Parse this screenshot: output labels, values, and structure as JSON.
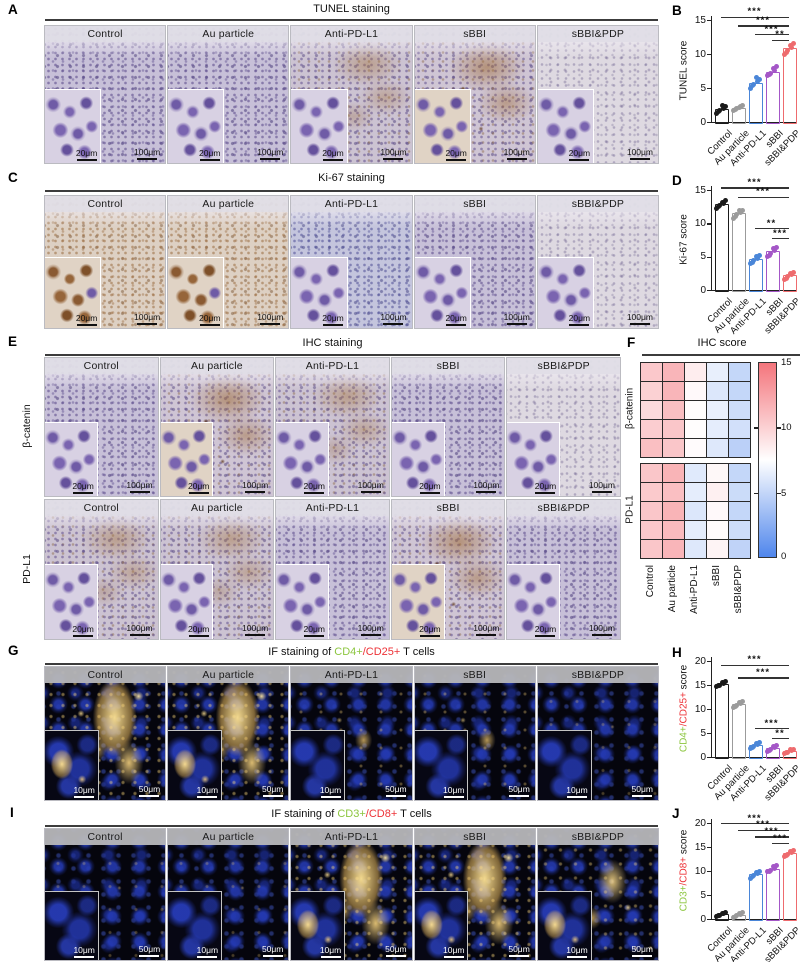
{
  "groups": [
    "Control",
    "Au particle",
    "Anti-PD-L1",
    "sBBI",
    "sBBI&PDP"
  ],
  "colors": {
    "group_black": "#1a1a1a",
    "group_gray": "#9b9b9b",
    "group_blue": "#4a86d8",
    "group_purple": "#a457c7",
    "group_red": "#ee6b6e",
    "green_label": "#8cc63f",
    "red_label": "#ed3237",
    "heatmap_low": "#4f86ec",
    "heatmap_mid": "#ffffff",
    "heatmap_high": "#f4757c"
  },
  "panels": [
    {
      "id": "A",
      "panel_label": "A",
      "kind": "ihc",
      "title_parts": [
        {
          "text": "TUNEL staining"
        }
      ],
      "inset_scale": "20μm",
      "main_scale": "100μm",
      "rows": [
        {
          "cells": [
            {
              "label": "Control",
              "tint": "lav"
            },
            {
              "label": "Au particle",
              "tint": "lav"
            },
            {
              "label": "Anti-PD-L1",
              "tint": "lavtan"
            },
            {
              "label": "sBBI",
              "tint": "lavtan2"
            },
            {
              "label": "sBBI&PDP",
              "tint": "light"
            }
          ]
        }
      ]
    },
    {
      "id": "C",
      "panel_label": "C",
      "kind": "ihc",
      "title_parts": [
        {
          "text": "Ki-67 staining"
        }
      ],
      "inset_scale": "20μm",
      "main_scale": "100μm",
      "rows": [
        {
          "cells": [
            {
              "label": "Control",
              "tint": "tan"
            },
            {
              "label": "Au particle",
              "tint": "tan"
            },
            {
              "label": "Anti-PD-L1",
              "tint": "blue"
            },
            {
              "label": "sBBI",
              "tint": "lav"
            },
            {
              "label": "sBBI&PDP",
              "tint": "light"
            }
          ]
        }
      ]
    },
    {
      "id": "E",
      "panel_label": "E",
      "kind": "ihc",
      "title_parts": [
        {
          "text": "IHC staining"
        }
      ],
      "inset_scale": "20μm",
      "main_scale": "100μm",
      "rows": [
        {
          "row_label": "β-catenin",
          "cells": [
            {
              "label": "Control",
              "tint": "lav"
            },
            {
              "label": "Au particle",
              "tint": "lavtan2"
            },
            {
              "label": "Anti-PD-L1",
              "tint": "lavtan"
            },
            {
              "label": "sBBI",
              "tint": "lav"
            },
            {
              "label": "sBBI&PDP",
              "tint": "light"
            }
          ]
        },
        {
          "row_label": "PD-L1",
          "cells": [
            {
              "label": "Control",
              "tint": "lavtan"
            },
            {
              "label": "Au particle",
              "tint": "lavtan"
            },
            {
              "label": "Anti-PD-L1",
              "tint": "lav"
            },
            {
              "label": "sBBI",
              "tint": "lavtan2"
            },
            {
              "label": "sBBI&PDP",
              "tint": "lav"
            }
          ]
        }
      ]
    },
    {
      "id": "G",
      "panel_label": "G",
      "kind": "if",
      "title_parts": [
        {
          "text": "IF staining of "
        },
        {
          "text": "CD4+",
          "color": "#8cc63f"
        },
        {
          "text": "/CD25+",
          "color": "#ed3237"
        },
        {
          "text": " T cells"
        }
      ],
      "inset_scale": "10μm",
      "main_scale": "50μm",
      "rows": [
        {
          "cells": [
            {
              "label": "Control",
              "tint": "y3"
            },
            {
              "label": "Au particle",
              "tint": "y3"
            },
            {
              "label": "Anti-PD-L1",
              "tint": "y1"
            },
            {
              "label": "sBBI",
              "tint": "y1"
            },
            {
              "label": "sBBI&PDP",
              "tint": "y0"
            }
          ]
        }
      ]
    },
    {
      "id": "I",
      "panel_label": "I",
      "kind": "if",
      "title_parts": [
        {
          "text": "IF staining of "
        },
        {
          "text": "CD3+",
          "color": "#8cc63f"
        },
        {
          "text": "/CD8+",
          "color": "#ed3237"
        },
        {
          "text": " T cells"
        }
      ],
      "inset_scale": "10μm",
      "main_scale": "50μm",
      "rows": [
        {
          "cells": [
            {
              "label": "Control",
              "tint": "y0"
            },
            {
              "label": "Au particle",
              "tint": "y0"
            },
            {
              "label": "Anti-PD-L1",
              "tint": "y3"
            },
            {
              "label": "sBBI",
              "tint": "y3"
            },
            {
              "label": "sBBI&PDP",
              "tint": "y2"
            }
          ]
        }
      ]
    }
  ],
  "chart_data": [
    {
      "id": "B",
      "panel_label": "B",
      "type": "scatter",
      "ylabel_parts": [
        {
          "text": "TUNEL score"
        }
      ],
      "ylim": [
        0,
        15
      ],
      "yticks": [
        0,
        5,
        10,
        15
      ],
      "categories": [
        "Control",
        "Au particle",
        "Anti-PD-L1",
        "sBBI",
        "sBBI&PDP"
      ],
      "series": [
        {
          "name": "Control",
          "color": "#1a1a1a",
          "mean": 1.9,
          "points": [
            1.3,
            1.7,
            2.0,
            2.3,
            1.6,
            2.5
          ]
        },
        {
          "name": "Au particle",
          "color": "#9b9b9b",
          "mean": 2.1,
          "points": [
            1.7,
            2.0,
            2.3,
            2.5,
            1.9,
            2.2
          ]
        },
        {
          "name": "Anti-PD-L1",
          "color": "#4a86d8",
          "mean": 5.8,
          "points": [
            5.0,
            5.5,
            5.9,
            6.3,
            5.3,
            6.5
          ]
        },
        {
          "name": "sBBI",
          "color": "#a457c7",
          "mean": 7.4,
          "points": [
            6.8,
            7.2,
            7.6,
            8.1,
            7.0,
            7.9
          ]
        },
        {
          "name": "sBBI&PDP",
          "color": "#ee6b6e",
          "mean": 10.9,
          "points": [
            9.9,
            10.5,
            11.0,
            11.6,
            10.2,
            11.3
          ]
        }
      ],
      "significance": [
        {
          "a": 0,
          "b": 4,
          "label": "***",
          "y": 15.5
        },
        {
          "a": 1,
          "b": 4,
          "label": "***",
          "y": 14.2
        },
        {
          "a": 2,
          "b": 4,
          "label": "***",
          "y": 12.9
        },
        {
          "a": 3,
          "b": 4,
          "label": "**",
          "y": 12.1
        }
      ]
    },
    {
      "id": "D",
      "panel_label": "D",
      "type": "scatter",
      "ylabel_parts": [
        {
          "text": "Ki-67 score"
        }
      ],
      "ylim": [
        0,
        15
      ],
      "yticks": [
        0,
        5,
        10,
        15
      ],
      "categories": [
        "Control",
        "Au particle",
        "Anti-PD-L1",
        "sBBI",
        "sBBI&PDP"
      ],
      "series": [
        {
          "name": "Control",
          "color": "#1a1a1a",
          "mean": 12.9,
          "points": [
            12.3,
            12.7,
            13.0,
            13.4,
            12.5,
            13.2
          ]
        },
        {
          "name": "Au particle",
          "color": "#9b9b9b",
          "mean": 11.5,
          "points": [
            10.8,
            11.3,
            11.6,
            12.0,
            11.1,
            11.9
          ]
        },
        {
          "name": "Anti-PD-L1",
          "color": "#4a86d8",
          "mean": 4.7,
          "points": [
            4.0,
            4.4,
            4.8,
            5.2,
            4.2,
            5.0
          ]
        },
        {
          "name": "sBBI",
          "color": "#a457c7",
          "mean": 5.8,
          "points": [
            5.0,
            5.5,
            5.9,
            6.4,
            5.2,
            6.2
          ]
        },
        {
          "name": "sBBI&PDP",
          "color": "#ee6b6e",
          "mean": 2.2,
          "points": [
            1.6,
            2.0,
            2.3,
            2.7,
            1.8,
            2.5
          ]
        }
      ],
      "significance": [
        {
          "a": 0,
          "b": 4,
          "label": "***",
          "y": 15.4
        },
        {
          "a": 1,
          "b": 4,
          "label": "***",
          "y": 14.0
        },
        {
          "a": 2,
          "b": 4,
          "label": "**",
          "y": 9.3
        },
        {
          "a": 3,
          "b": 4,
          "label": "***",
          "y": 7.8
        }
      ]
    },
    {
      "id": "H",
      "panel_label": "H",
      "type": "scatter",
      "ylabel_parts": [
        {
          "text": "CD4+",
          "color": "#8cc63f"
        },
        {
          "text": "/CD25+",
          "color": "#ed3237"
        },
        {
          "text": " score"
        }
      ],
      "ylim": [
        0,
        20
      ],
      "yticks": [
        0,
        5,
        10,
        15,
        20
      ],
      "categories": [
        "Control",
        "Au particle",
        "Anti-PD-L1",
        "sBBI",
        "sBBI&PDP"
      ],
      "series": [
        {
          "name": "Control",
          "color": "#1a1a1a",
          "mean": 15.2,
          "points": [
            14.6,
            15.0,
            15.3,
            15.7,
            14.8,
            15.5
          ]
        },
        {
          "name": "Au particle",
          "color": "#9b9b9b",
          "mean": 11.0,
          "points": [
            10.3,
            10.8,
            11.1,
            11.5,
            10.5,
            11.3
          ]
        },
        {
          "name": "Anti-PD-L1",
          "color": "#4a86d8",
          "mean": 2.5,
          "points": [
            1.8,
            2.2,
            2.6,
            3.0,
            2.0,
            2.8
          ]
        },
        {
          "name": "sBBI",
          "color": "#a457c7",
          "mean": 1.8,
          "points": [
            1.2,
            1.6,
            1.9,
            2.3,
            1.4,
            2.1
          ]
        },
        {
          "name": "sBBI&PDP",
          "color": "#ee6b6e",
          "mean": 1.2,
          "points": [
            0.7,
            1.0,
            1.3,
            1.6,
            0.9,
            1.5
          ]
        }
      ],
      "significance": [
        {
          "a": 0,
          "b": 4,
          "label": "***",
          "y": 19.2
        },
        {
          "a": 1,
          "b": 4,
          "label": "***",
          "y": 16.6
        },
        {
          "a": 2,
          "b": 4,
          "label": "***",
          "y": 6.0
        },
        {
          "a": 3,
          "b": 4,
          "label": "**",
          "y": 3.9
        }
      ]
    },
    {
      "id": "J",
      "panel_label": "J",
      "type": "scatter",
      "ylabel_parts": [
        {
          "text": "CD3+",
          "color": "#8cc63f"
        },
        {
          "text": "/CD8+",
          "color": "#ed3237"
        },
        {
          "text": " score"
        }
      ],
      "ylim": [
        0,
        20
      ],
      "yticks": [
        0,
        5,
        10,
        15,
        20
      ],
      "categories": [
        "Control",
        "Au particle",
        "Anti-PD-L1",
        "sBBI",
        "sBBI&PDP"
      ],
      "series": [
        {
          "name": "Control",
          "color": "#1a1a1a",
          "mean": 1.0,
          "points": [
            0.5,
            0.8,
            1.1,
            1.4,
            0.7,
            1.2
          ]
        },
        {
          "name": "Au particle",
          "color": "#9b9b9b",
          "mean": 0.9,
          "points": [
            0.4,
            0.7,
            1.0,
            1.3,
            0.6,
            1.1
          ]
        },
        {
          "name": "Anti-PD-L1",
          "color": "#4a86d8",
          "mean": 9.3,
          "points": [
            8.5,
            9.0,
            9.4,
            9.9,
            8.8,
            9.6
          ]
        },
        {
          "name": "sBBI",
          "color": "#a457c7",
          "mean": 10.5,
          "points": [
            9.8,
            10.2,
            10.6,
            11.1,
            10.0,
            10.9
          ]
        },
        {
          "name": "sBBI&PDP",
          "color": "#ee6b6e",
          "mean": 13.8,
          "points": [
            13.1,
            13.5,
            13.9,
            14.3,
            13.3,
            14.1
          ]
        }
      ],
      "significance": [
        {
          "a": 0,
          "b": 4,
          "label": "***",
          "y": 20.0
        },
        {
          "a": 1,
          "b": 4,
          "label": "***",
          "y": 18.6
        },
        {
          "a": 2,
          "b": 4,
          "label": "***",
          "y": 17.2
        },
        {
          "a": 3,
          "b": 4,
          "label": "***",
          "y": 15.8
        }
      ]
    },
    {
      "id": "F",
      "panel_label": "F",
      "type": "heatmap",
      "title": "IHC score",
      "columns": [
        "Control",
        "Au particle",
        "Anti-PD-L1",
        "sBBI",
        "sBBI&PDP"
      ],
      "row_blocks": [
        {
          "label": "β-catenin",
          "rows": [
            [
              10.5,
              11.5,
              8.5,
              6.5,
              5.0
            ],
            [
              10.0,
              11.5,
              7.8,
              6.0,
              5.0
            ],
            [
              9.5,
              11.0,
              7.6,
              6.6,
              5.4
            ],
            [
              10.2,
              10.6,
              7.6,
              6.4,
              5.6
            ],
            [
              11.0,
              10.6,
              7.7,
              6.1,
              4.6
            ]
          ]
        },
        {
          "label": "PD-L1",
          "rows": [
            [
              10.6,
              11.6,
              6.2,
              7.9,
              5.0
            ],
            [
              10.4,
              11.0,
              6.4,
              8.3,
              5.3
            ],
            [
              10.6,
              11.6,
              6.0,
              7.8,
              5.0
            ],
            [
              10.5,
              11.2,
              6.4,
              7.7,
              5.4
            ],
            [
              10.6,
              11.5,
              6.1,
              8.1,
              4.8
            ]
          ]
        }
      ],
      "scale": {
        "min": 0,
        "max": 15,
        "ticks": [
          15,
          10,
          5,
          0
        ],
        "low_color": "#4f86ec",
        "mid_color": "#ffffff",
        "high_color": "#f4757c"
      }
    }
  ]
}
